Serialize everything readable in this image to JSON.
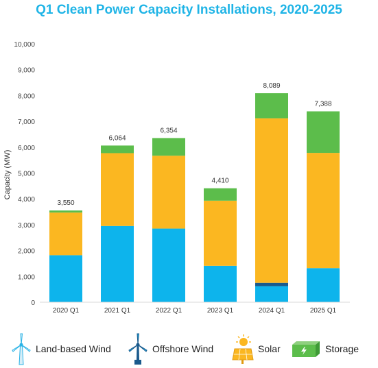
{
  "chart_data": {
    "type": "bar",
    "stacked": true,
    "title": "Q1 Clean Power Capacity Installations, 2020-2025",
    "ylabel": "Capacity (MW)",
    "xlabel": "",
    "ylim": [
      0,
      10000
    ],
    "yticks": [
      "0",
      "1,000",
      "2,000",
      "3,000",
      "4,000",
      "5,000",
      "6,000",
      "7,000",
      "8,000",
      "9,000",
      "10,000"
    ],
    "categories": [
      "2020 Q1",
      "2021 Q1",
      "2022 Q1",
      "2023 Q1",
      "2024 Q1",
      "2025 Q1"
    ],
    "totals": [
      "3,550",
      "6,064",
      "6,354",
      "4,410",
      "8,089",
      "7,388"
    ],
    "series": [
      {
        "name": "Land-based Wind",
        "color": "#0db4ec",
        "values": [
          1820,
          2950,
          2850,
          1410,
          620,
          1320
        ]
      },
      {
        "name": "Offshore Wind",
        "color": "#1a5a8c",
        "values": [
          0,
          0,
          0,
          0,
          130,
          0
        ]
      },
      {
        "name": "Solar",
        "color": "#fbb721",
        "values": [
          1650,
          2820,
          2820,
          2520,
          6370,
          4460
        ]
      },
      {
        "name": "Storage",
        "color": "#5cbd4b",
        "values": [
          80,
          294,
          684,
          480,
          969,
          1608
        ]
      }
    ],
    "grid": false,
    "legend_position": "bottom"
  },
  "legend": {
    "items": [
      {
        "label": "Land-based Wind",
        "icon": "wind-turbine-icon"
      },
      {
        "label": "Offshore Wind",
        "icon": "offshore-turbine-icon"
      },
      {
        "label": "Solar",
        "icon": "solar-panel-icon"
      },
      {
        "label": "Storage",
        "icon": "battery-storage-icon"
      }
    ]
  }
}
